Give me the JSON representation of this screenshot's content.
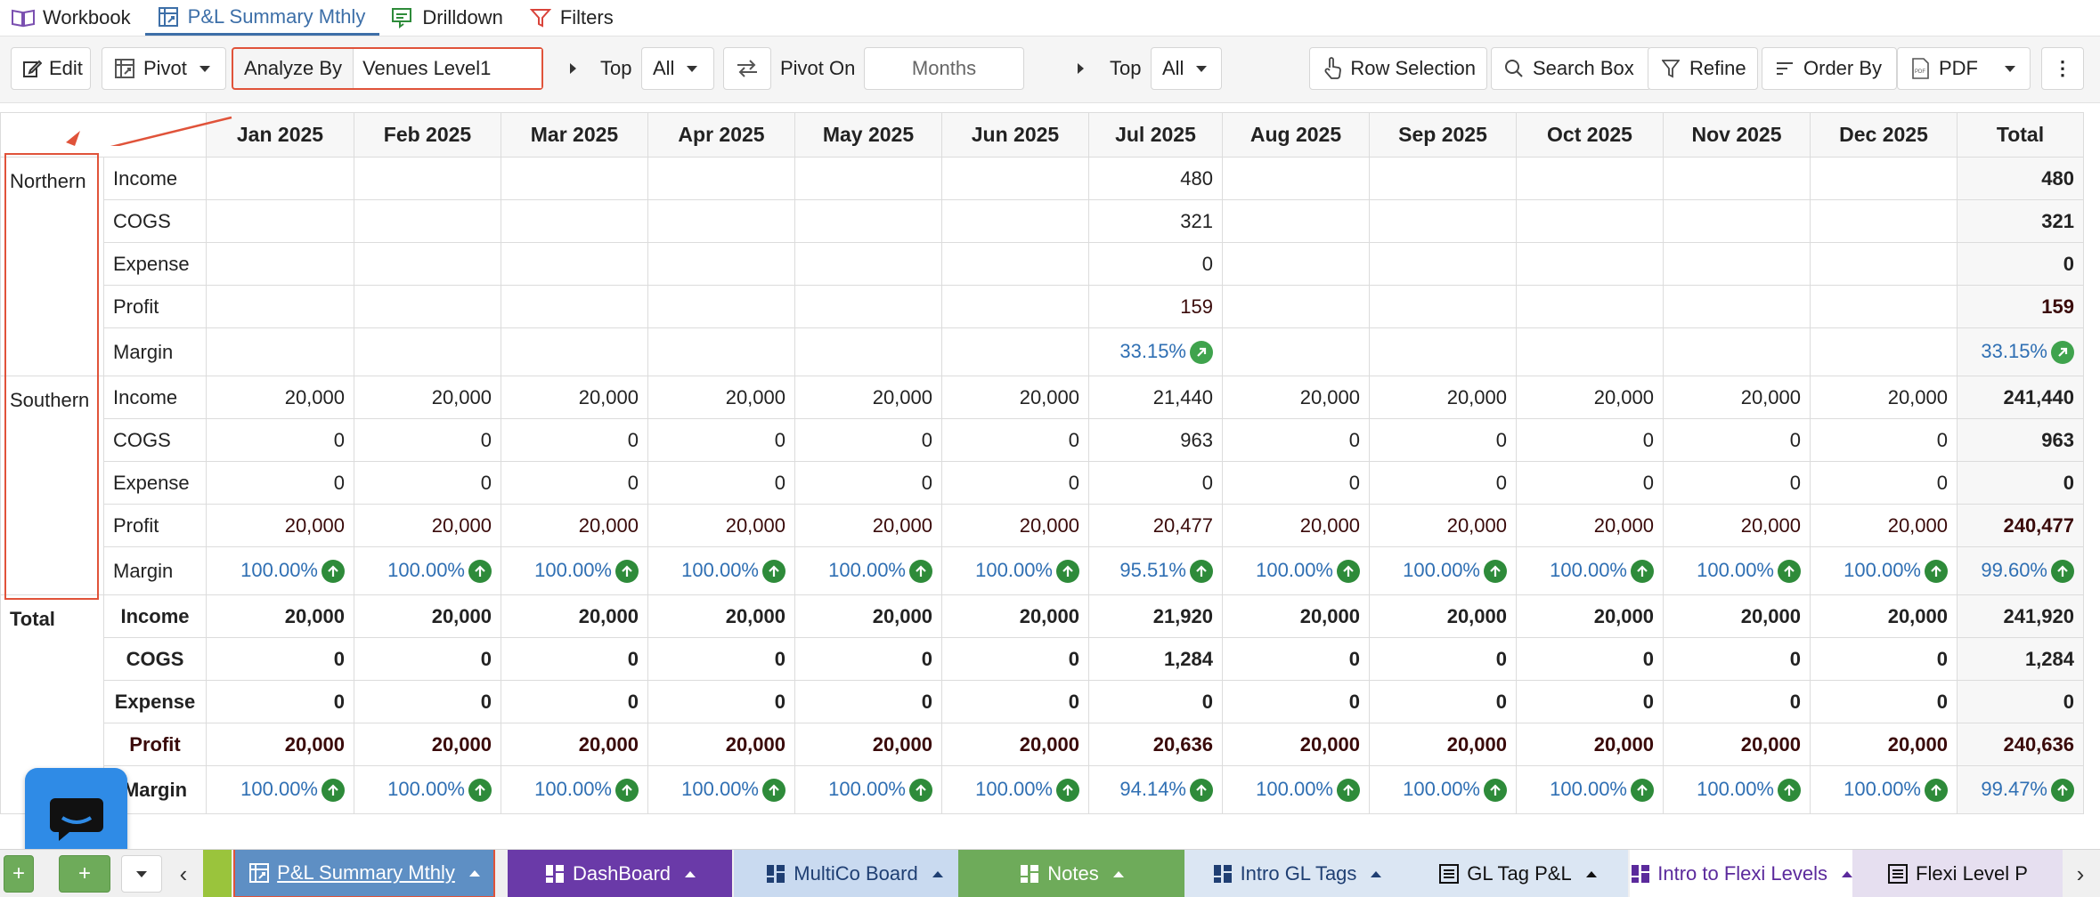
{
  "top_tabs": [
    {
      "label": "Workbook",
      "icon": "book-icon",
      "active": false
    },
    {
      "label": "P&L Summary Mthly",
      "icon": "pivot-sheet-icon",
      "active": true
    },
    {
      "label": "Drilldown",
      "icon": "drilldown-icon",
      "active": false
    },
    {
      "label": "Filters",
      "icon": "filter-icon",
      "active": false
    }
  ],
  "toolbar": {
    "edit_label": "Edit",
    "pivot_label": "Pivot",
    "analyze_by_label": "Analyze By",
    "analyze_by_value": "Venues Level1",
    "top_label": "Top",
    "top_value": "All",
    "pivot_on_label": "Pivot On",
    "pivot_on_value": "Months",
    "top2_label": "Top",
    "top2_value": "All",
    "row_selection_label": "Row Selection",
    "search_box_label": "Search Box",
    "refine_label": "Refine",
    "order_by_label": "Order By",
    "pdf_label": "PDF",
    "more_label": "⋮"
  },
  "grid": {
    "columns": [
      "Jan 2025",
      "Feb 2025",
      "Mar 2025",
      "Apr 2025",
      "May 2025",
      "Jun 2025",
      "Jul 2025",
      "Aug 2025",
      "Sep 2025",
      "Oct 2025",
      "Nov 2025",
      "Dec 2025",
      "Total"
    ],
    "groups": [
      {
        "name": "Northern",
        "rows": [
          {
            "metric": "Income",
            "values": [
              "",
              "",
              "",
              "",
              "",
              "",
              "480",
              "",
              "",
              "",
              "",
              ""
            ],
            "total": "480"
          },
          {
            "metric": "COGS",
            "values": [
              "",
              "",
              "",
              "",
              "",
              "",
              "321",
              "",
              "",
              "",
              "",
              ""
            ],
            "total": "321"
          },
          {
            "metric": "Expense",
            "values": [
              "",
              "",
              "",
              "",
              "",
              "",
              "0",
              "",
              "",
              "",
              "",
              ""
            ],
            "total": "0"
          },
          {
            "metric": "Profit",
            "values": [
              "",
              "",
              "",
              "",
              "",
              "",
              "159",
              "",
              "",
              "",
              "",
              ""
            ],
            "total": "159"
          },
          {
            "metric": "Margin",
            "values": [
              "",
              "",
              "",
              "",
              "",
              "",
              "33.15%",
              "",
              "",
              "",
              "",
              ""
            ],
            "total": "33.15%"
          }
        ]
      },
      {
        "name": "Southern",
        "rows": [
          {
            "metric": "Income",
            "values": [
              "20,000",
              "20,000",
              "20,000",
              "20,000",
              "20,000",
              "20,000",
              "21,440",
              "20,000",
              "20,000",
              "20,000",
              "20,000",
              "20,000"
            ],
            "total": "241,440"
          },
          {
            "metric": "COGS",
            "values": [
              "0",
              "0",
              "0",
              "0",
              "0",
              "0",
              "963",
              "0",
              "0",
              "0",
              "0",
              "0"
            ],
            "total": "963"
          },
          {
            "metric": "Expense",
            "values": [
              "0",
              "0",
              "0",
              "0",
              "0",
              "0",
              "0",
              "0",
              "0",
              "0",
              "0",
              "0"
            ],
            "total": "0"
          },
          {
            "metric": "Profit",
            "values": [
              "20,000",
              "20,000",
              "20,000",
              "20,000",
              "20,000",
              "20,000",
              "20,477",
              "20,000",
              "20,000",
              "20,000",
              "20,000",
              "20,000"
            ],
            "total": "240,477"
          },
          {
            "metric": "Margin",
            "values": [
              "100.00%",
              "100.00%",
              "100.00%",
              "100.00%",
              "100.00%",
              "100.00%",
              "95.51%",
              "100.00%",
              "100.00%",
              "100.00%",
              "100.00%",
              "100.00%"
            ],
            "total": "99.60%"
          }
        ]
      },
      {
        "name": "Total",
        "is_total": true,
        "rows": [
          {
            "metric": "Income",
            "values": [
              "20,000",
              "20,000",
              "20,000",
              "20,000",
              "20,000",
              "20,000",
              "21,920",
              "20,000",
              "20,000",
              "20,000",
              "20,000",
              "20,000"
            ],
            "total": "241,920"
          },
          {
            "metric": "COGS",
            "values": [
              "0",
              "0",
              "0",
              "0",
              "0",
              "0",
              "1,284",
              "0",
              "0",
              "0",
              "0",
              "0"
            ],
            "total": "1,284"
          },
          {
            "metric": "Expense",
            "values": [
              "0",
              "0",
              "0",
              "0",
              "0",
              "0",
              "0",
              "0",
              "0",
              "0",
              "0",
              "0"
            ],
            "total": "0"
          },
          {
            "metric": "Profit",
            "values": [
              "20,000",
              "20,000",
              "20,000",
              "20,000",
              "20,000",
              "20,000",
              "20,636",
              "20,000",
              "20,000",
              "20,000",
              "20,000",
              "20,000"
            ],
            "total": "240,636"
          },
          {
            "metric": "Margin",
            "values": [
              "100.00%",
              "100.00%",
              "100.00%",
              "100.00%",
              "100.00%",
              "100.00%",
              "94.14%",
              "100.00%",
              "100.00%",
              "100.00%",
              "100.00%",
              "100.00%"
            ],
            "total": "99.47%"
          }
        ]
      }
    ]
  },
  "sheet_tabs": [
    {
      "label": "P&L Summary Mthly",
      "icon": "pivot-sheet-icon",
      "bg": "#5e8fc4",
      "fg": "#ffffff",
      "active": true
    },
    {
      "label": "DashBoard",
      "icon": "dashboard-icon",
      "bg": "#6a3aa8",
      "fg": "#ffffff",
      "active": false
    },
    {
      "label": "MultiCo Board",
      "icon": "dashboard-icon",
      "bg": "#c9daf0",
      "fg": "#1f3f73",
      "active": false
    },
    {
      "label": "Notes",
      "icon": "dashboard-icon",
      "bg": "#6eab5a",
      "fg": "#ffffff",
      "active": false
    },
    {
      "label": "Intro GL Tags",
      "icon": "dashboard-icon",
      "bg": "#dbe6f3",
      "fg": "#1f3f73",
      "active": false
    },
    {
      "label": "GL Tag P&L",
      "icon": "list-sheet-icon",
      "bg": "#dbe6f3",
      "fg": "#111111",
      "active": false
    },
    {
      "label": "Intro to Flexi Levels",
      "icon": "dashboard-icon",
      "bg": "#ffffff",
      "fg": "#5b2a9c",
      "active": false
    },
    {
      "label": "Flexi Level P",
      "icon": "list-sheet-icon",
      "bg": "#e6dff0",
      "fg": "#111111",
      "active": false
    }
  ],
  "colors": {
    "accent": "#3d6fa8",
    "annotation_red": "#e0533a",
    "margin_blue": "#2f6fb3",
    "badge_green": "#2e8b3a",
    "chat_blue": "#2f8be6"
  }
}
